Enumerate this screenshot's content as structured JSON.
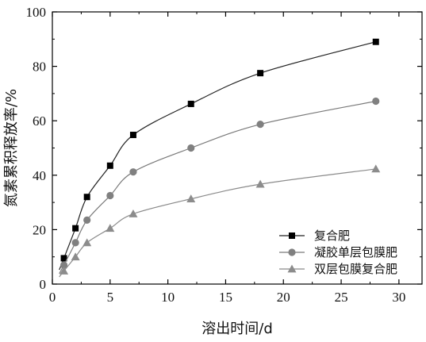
{
  "chart_data": {
    "type": "line",
    "xlabel": "溶出时间/d",
    "ylabel": "氮素累积释放率/%",
    "xlim": [
      0,
      32
    ],
    "ylim": [
      0,
      100
    ],
    "xticks": [
      0,
      5,
      10,
      15,
      20,
      25,
      30
    ],
    "yticks": [
      0,
      20,
      40,
      60,
      80,
      100
    ],
    "legend_position": "bottom-right",
    "grid": false,
    "x": [
      1,
      2,
      3,
      5,
      7,
      12,
      18,
      28
    ],
    "series": [
      {
        "name": "复合肥",
        "marker": "square",
        "color": "#000000",
        "line_color": "#222222",
        "values": [
          9.5,
          20.5,
          32.0,
          43.5,
          54.8,
          66.2,
          77.5,
          89.0
        ]
      },
      {
        "name": "凝胶单层包膜肥",
        "marker": "circle",
        "color": "#808080",
        "line_color": "#7a7a7a",
        "values": [
          7.0,
          15.2,
          23.5,
          32.5,
          41.2,
          50.0,
          58.7,
          67.2
        ]
      },
      {
        "name": "双层包膜复合肥",
        "marker": "triangle",
        "color": "#8c8c8c",
        "line_color": "#8a8a8a",
        "values": [
          4.8,
          10.0,
          15.2,
          20.5,
          25.8,
          31.3,
          36.7,
          42.3
        ]
      }
    ]
  }
}
